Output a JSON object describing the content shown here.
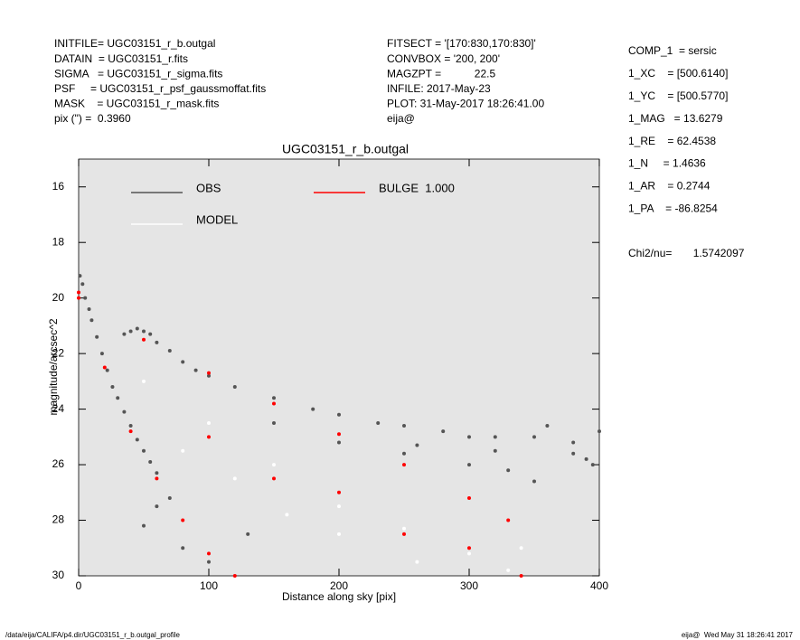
{
  "header": {
    "left": [
      "INITFILE= UGC03151_r_b.outgal",
      "DATAIN  = UGC03151_r.fits",
      "SIGMA   = UGC03151_r_sigma.fits",
      "PSF     = UGC03151_r_psf_gaussmoffat.fits",
      "MASK    = UGC03151_r_mask.fits",
      "pix (\") =  0.3960"
    ],
    "middle": [
      "FITSECT = '[170:830,170:830]'",
      "CONVBOX = '200, 200'",
      "MAGZPT =           22.5",
      "INFILE: 2017-May-23",
      "PLOT: 31-May-2017 18:26:41.00",
      "eija@"
    ],
    "right": [
      "COMP_1  = sersic",
      "1_XC    = [500.6140]",
      "1_YC    = [500.5770]",
      "1_MAG   = 13.6279",
      "1_RE    = 62.4538",
      "1_N     = 1.4636",
      "1_AR    = 0.2744",
      "1_PA    = -86.8254"
    ],
    "chi2": "Chi2/nu=       1.5742097"
  },
  "footer": {
    "left": "/data/eija/CALIFA/p4.dir/UGC03151_r_b.outgal_profile",
    "right": "eija@  Wed May 31 18:26:41 2017"
  },
  "chart_data": {
    "type": "scatter",
    "title": "UGC03151_r_b.outgal",
    "xlabel": "Distance along sky [pix]",
    "ylabel": "magnitude/arcsec^2",
    "xlim": [
      0,
      400
    ],
    "ylim": [
      30,
      15
    ],
    "xticks": [
      0,
      100,
      200,
      300,
      400
    ],
    "yticks": [
      16,
      18,
      20,
      22,
      24,
      26,
      28,
      30
    ],
    "background": "#e5e5e5",
    "series": [
      {
        "name": "OBS",
        "color": "#555555",
        "x": [
          1,
          3,
          5,
          8,
          10,
          14,
          18,
          22,
          26,
          30,
          35,
          40,
          45,
          50,
          55,
          60,
          35,
          40,
          45,
          50,
          55,
          60,
          70,
          80,
          90,
          100,
          120,
          150,
          180,
          200,
          230,
          250,
          280,
          300,
          320,
          350,
          380,
          400,
          150,
          200,
          250,
          300,
          330,
          350,
          380,
          395,
          260,
          320,
          360,
          390,
          50,
          60,
          80,
          100,
          130,
          70
        ],
        "values": [
          19.2,
          19.5,
          20.0,
          20.4,
          20.8,
          21.4,
          22.0,
          22.6,
          23.2,
          23.6,
          24.1,
          24.6,
          25.1,
          25.5,
          25.9,
          26.3,
          21.3,
          21.2,
          21.1,
          21.2,
          21.3,
          21.6,
          21.9,
          22.3,
          22.6,
          22.8,
          23.2,
          23.6,
          24.0,
          24.2,
          24.5,
          24.6,
          24.8,
          25.0,
          25.0,
          25.0,
          25.2,
          24.8,
          24.5,
          25.2,
          25.6,
          26.0,
          26.2,
          26.6,
          25.6,
          26.0,
          25.3,
          25.5,
          24.6,
          25.8,
          28.2,
          27.5,
          29.0,
          29.5,
          28.5,
          27.2
        ]
      },
      {
        "name": "MODEL",
        "color": "#ffffff",
        "x": [
          50,
          100,
          150,
          200,
          250,
          300,
          120,
          200,
          330,
          80,
          160,
          260,
          340
        ],
        "values": [
          23.0,
          24.5,
          26.0,
          27.5,
          28.3,
          29.2,
          26.5,
          28.5,
          29.8,
          25.5,
          27.8,
          29.5,
          29.0
        ]
      },
      {
        "name": "BULGE  1.000",
        "color": "#ff0000",
        "x": [
          0,
          50,
          100,
          150,
          200,
          250,
          300,
          330,
          0,
          20,
          40,
          60,
          80,
          100,
          120,
          100,
          200,
          300,
          340,
          150,
          250
        ],
        "values": [
          19.8,
          21.5,
          22.7,
          23.8,
          24.9,
          26.0,
          27.2,
          28.0,
          20.0,
          22.5,
          24.8,
          26.5,
          28.0,
          29.2,
          30.0,
          25.0,
          27.0,
          29.0,
          30.0,
          26.5,
          28.5
        ]
      }
    ]
  }
}
